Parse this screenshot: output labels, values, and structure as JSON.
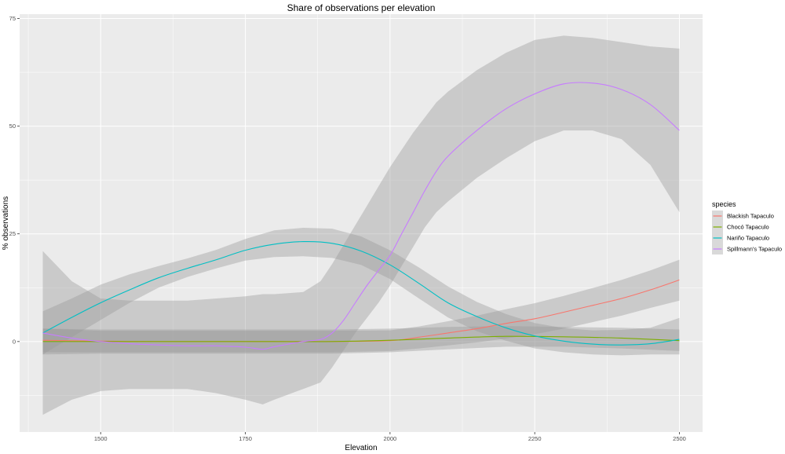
{
  "chart_data": {
    "type": "line",
    "title": "Share of observations per elevation",
    "xlabel": "Elevation",
    "ylabel": "% observations",
    "xlim": [
      1360,
      2540
    ],
    "ylim": [
      -21,
      76
    ],
    "x_ticks": [
      1500,
      1750,
      2000,
      2250,
      2500
    ],
    "y_ticks": [
      0,
      25,
      50,
      75
    ],
    "x_tick_labels": [
      "1500",
      "1750",
      "2000",
      "2250",
      "2500"
    ],
    "y_tick_labels": [
      "0",
      "25",
      "50",
      "75"
    ],
    "grid": true,
    "legend_placement": "right",
    "legend_title": "species",
    "confidence_band_color": "#999999",
    "panel_background": "#ebebeb",
    "series": [
      {
        "name": "Blackish Tapaculo",
        "color": "#f8766d",
        "x": [
          1400,
          1500,
          1600,
          1700,
          1800,
          1900,
          2000,
          2050,
          2100,
          2150,
          2200,
          2250,
          2300,
          2350,
          2400,
          2450,
          2500
        ],
        "values": [
          0.3,
          0.1,
          0,
          0,
          0,
          0,
          0.2,
          1.0,
          2.0,
          3.0,
          4.2,
          5.3,
          6.8,
          8.4,
          10.0,
          12.0,
          14.3
        ],
        "lower": [
          -2.5,
          -2.5,
          -2.5,
          -2.5,
          -2.5,
          -2.5,
          -2.2,
          -1.6,
          -0.9,
          -0.2,
          0.7,
          1.7,
          3.0,
          4.5,
          6.0,
          7.8,
          9.5
        ],
        "upper": [
          3.0,
          2.5,
          2.5,
          2.5,
          2.5,
          2.5,
          2.6,
          3.5,
          4.7,
          6.0,
          7.5,
          8.9,
          10.6,
          12.4,
          14.3,
          16.5,
          19.0
        ]
      },
      {
        "name": "Chocó Tapaculo",
        "color": "#7cae00",
        "x": [
          1400,
          1500,
          1600,
          1700,
          1800,
          1900,
          2000,
          2100,
          2200,
          2300,
          2400,
          2500
        ],
        "values": [
          0,
          0,
          0,
          0,
          0,
          0,
          0.3,
          0.8,
          1.2,
          1.1,
          0.8,
          0.2
        ],
        "lower": [
          -3.0,
          -2.8,
          -2.8,
          -2.8,
          -2.8,
          -2.8,
          -2.5,
          -1.8,
          -1.2,
          -1.2,
          -1.6,
          -2.2
        ],
        "upper": [
          3.0,
          2.8,
          2.8,
          2.8,
          2.8,
          2.8,
          3.0,
          3.4,
          3.6,
          3.4,
          3.2,
          2.8
        ]
      },
      {
        "name": "Nariño Tapaculo",
        "color": "#00bfc4",
        "x": [
          1400,
          1450,
          1500,
          1550,
          1600,
          1650,
          1700,
          1750,
          1800,
          1850,
          1900,
          1950,
          2000,
          2050,
          2100,
          2150,
          2200,
          2250,
          2300,
          2350,
          2400,
          2450,
          2500
        ],
        "values": [
          2.0,
          5.6,
          9.0,
          12.0,
          14.8,
          17.0,
          19.0,
          21.2,
          22.6,
          23.2,
          22.8,
          21.0,
          17.8,
          13.5,
          9.0,
          5.8,
          3.2,
          1.3,
          0.1,
          -0.6,
          -0.8,
          -0.5,
          0.5
        ],
        "lower": [
          -3.0,
          1.0,
          5.0,
          9.0,
          12.5,
          15.0,
          17.0,
          18.8,
          19.6,
          19.8,
          19.4,
          17.8,
          14.5,
          10.0,
          5.6,
          2.4,
          0.2,
          -1.6,
          -2.5,
          -3.0,
          -3.2,
          -3.0,
          -3.0
        ],
        "upper": [
          7.0,
          10.0,
          13.2,
          15.6,
          17.5,
          19.3,
          21.3,
          23.8,
          25.8,
          26.4,
          26.2,
          24.4,
          21.2,
          17.2,
          12.8,
          9.2,
          6.4,
          4.3,
          3.1,
          2.6,
          2.7,
          3.2,
          5.5
        ]
      },
      {
        "name": "Spillmann's Tapaculo",
        "color": "#c77cff",
        "x": [
          1400,
          1450,
          1500,
          1550,
          1600,
          1650,
          1700,
          1750,
          1780,
          1800,
          1850,
          1880,
          1900,
          1920,
          1940,
          1960,
          1980,
          2000,
          2020,
          2040,
          2060,
          2080,
          2100,
          2150,
          2200,
          2250,
          2300,
          2350,
          2400,
          2450,
          2500
        ],
        "values": [
          2.0,
          0.8,
          0,
          -0.5,
          -0.8,
          -1.0,
          -1.0,
          -1.3,
          -1.8,
          -1.2,
          0,
          0.5,
          2.0,
          5.0,
          9.0,
          13.0,
          16.5,
          20.0,
          25.0,
          30.0,
          35.0,
          39.5,
          43.0,
          49.0,
          54.0,
          57.5,
          59.8,
          60.0,
          58.5,
          55.0,
          49.0
        ],
        "lower": [
          -17.0,
          -13.5,
          -11.5,
          -11.0,
          -11.0,
          -11.0,
          -12.0,
          -13.5,
          -14.6,
          -13.5,
          -11.0,
          -9.5,
          -6.0,
          -2.0,
          2.0,
          5.5,
          9.0,
          13.0,
          17.5,
          22.0,
          26.5,
          30.0,
          32.5,
          38.0,
          42.5,
          46.5,
          49.0,
          49.0,
          47.0,
          41.0,
          30.0
        ],
        "upper": [
          21.0,
          14.0,
          10.0,
          9.5,
          9.5,
          9.5,
          10.0,
          10.5,
          11.0,
          11.0,
          11.5,
          14.0,
          18.0,
          22.5,
          27.0,
          31.5,
          36.0,
          40.5,
          44.5,
          48.5,
          52.0,
          55.5,
          58.0,
          63.0,
          67.0,
          70.0,
          71.0,
          70.5,
          69.5,
          68.5,
          68.0
        ]
      }
    ]
  }
}
